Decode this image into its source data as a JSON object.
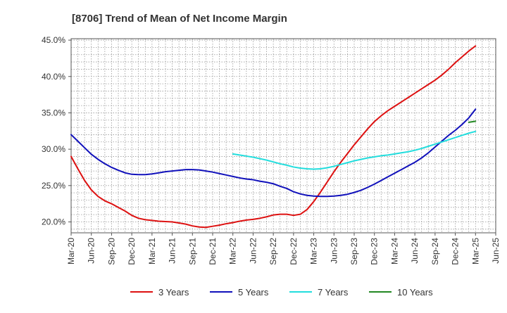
{
  "chart_data": {
    "type": "line",
    "title": "[8706]  Trend of Mean of Net Income Margin",
    "xlabel": "",
    "ylabel": "",
    "ylim": [
      18.5,
      45.2
    ],
    "y_ticks": [
      {
        "value": 20,
        "label": "20.0%"
      },
      {
        "value": 25,
        "label": "25.0%"
      },
      {
        "value": 30,
        "label": "30.0%"
      },
      {
        "value": 35,
        "label": "35.0%"
      },
      {
        "value": 40,
        "label": "40.0%"
      },
      {
        "value": 45,
        "label": "45.0%"
      }
    ],
    "x_ticks": [
      "Mar-20",
      "Jun-20",
      "Sep-20",
      "Dec-20",
      "Mar-21",
      "Jun-21",
      "Sep-21",
      "Dec-21",
      "Mar-22",
      "Jun-22",
      "Sep-22",
      "Dec-22",
      "Mar-23",
      "Jun-23",
      "Sep-23",
      "Dec-23",
      "Mar-24",
      "Jun-24",
      "Sep-24",
      "Dec-24",
      "Mar-25",
      "Jun-25"
    ],
    "grid": true,
    "legend_position": "bottom",
    "series": [
      {
        "name": "3 Years",
        "color": "#dd1111",
        "points": [
          [
            "Mar-20",
            29.0
          ],
          [
            "Apr-20",
            27.3
          ],
          [
            "May-20",
            25.7
          ],
          [
            "Jun-20",
            24.4
          ],
          [
            "Jul-20",
            23.5
          ],
          [
            "Aug-20",
            22.9
          ],
          [
            "Sep-20",
            22.5
          ],
          [
            "Oct-20",
            22.0
          ],
          [
            "Nov-20",
            21.5
          ],
          [
            "Dec-20",
            20.9
          ],
          [
            "Jan-21",
            20.5
          ],
          [
            "Feb-21",
            20.3
          ],
          [
            "Mar-21",
            20.2
          ],
          [
            "Apr-21",
            20.1
          ],
          [
            "May-21",
            20.05
          ],
          [
            "Jun-21",
            20.0
          ],
          [
            "Jul-21",
            19.85
          ],
          [
            "Aug-21",
            19.7
          ],
          [
            "Sep-21",
            19.45
          ],
          [
            "Oct-21",
            19.3
          ],
          [
            "Nov-21",
            19.25
          ],
          [
            "Dec-21",
            19.4
          ],
          [
            "Jan-22",
            19.55
          ],
          [
            "Feb-22",
            19.75
          ],
          [
            "Mar-22",
            19.9
          ],
          [
            "Apr-22",
            20.1
          ],
          [
            "May-22",
            20.25
          ],
          [
            "Jun-22",
            20.35
          ],
          [
            "Jul-22",
            20.5
          ],
          [
            "Aug-22",
            20.7
          ],
          [
            "Sep-22",
            20.95
          ],
          [
            "Oct-22",
            21.05
          ],
          [
            "Nov-22",
            21.05
          ],
          [
            "Dec-22",
            20.9
          ],
          [
            "Jan-23",
            21.05
          ],
          [
            "Feb-23",
            21.7
          ],
          [
            "Mar-23",
            22.8
          ],
          [
            "Apr-23",
            24.1
          ],
          [
            "May-23",
            25.5
          ],
          [
            "Jun-23",
            26.9
          ],
          [
            "Jul-23",
            28.2
          ],
          [
            "Aug-23",
            29.4
          ],
          [
            "Sep-23",
            30.6
          ],
          [
            "Oct-23",
            31.7
          ],
          [
            "Nov-23",
            32.8
          ],
          [
            "Dec-23",
            33.8
          ],
          [
            "Jan-24",
            34.6
          ],
          [
            "Feb-24",
            35.3
          ],
          [
            "Mar-24",
            35.9
          ],
          [
            "Apr-24",
            36.5
          ],
          [
            "May-24",
            37.1
          ],
          [
            "Jun-24",
            37.7
          ],
          [
            "Jul-24",
            38.3
          ],
          [
            "Aug-24",
            38.9
          ],
          [
            "Sep-24",
            39.5
          ],
          [
            "Oct-24",
            40.2
          ],
          [
            "Nov-24",
            41.0
          ],
          [
            "Dec-24",
            41.9
          ],
          [
            "Jan-25",
            42.7
          ],
          [
            "Feb-25",
            43.5
          ],
          [
            "Mar-25",
            44.2
          ]
        ]
      },
      {
        "name": "5 Years",
        "color": "#1111bb",
        "points": [
          [
            "Mar-20",
            32.0
          ],
          [
            "Apr-20",
            31.1
          ],
          [
            "May-20",
            30.2
          ],
          [
            "Jun-20",
            29.3
          ],
          [
            "Jul-20",
            28.6
          ],
          [
            "Aug-20",
            28.0
          ],
          [
            "Sep-20",
            27.5
          ],
          [
            "Oct-20",
            27.1
          ],
          [
            "Nov-20",
            26.75
          ],
          [
            "Dec-20",
            26.55
          ],
          [
            "Jan-21",
            26.5
          ],
          [
            "Feb-21",
            26.5
          ],
          [
            "Mar-21",
            26.6
          ],
          [
            "Apr-21",
            26.75
          ],
          [
            "May-21",
            26.9
          ],
          [
            "Jun-21",
            27.0
          ],
          [
            "Jul-21",
            27.1
          ],
          [
            "Aug-21",
            27.2
          ],
          [
            "Sep-21",
            27.2
          ],
          [
            "Oct-21",
            27.15
          ],
          [
            "Nov-21",
            27.0
          ],
          [
            "Dec-21",
            26.85
          ],
          [
            "Jan-22",
            26.65
          ],
          [
            "Feb-22",
            26.45
          ],
          [
            "Mar-22",
            26.25
          ],
          [
            "Apr-22",
            26.05
          ],
          [
            "May-22",
            25.9
          ],
          [
            "Jun-22",
            25.8
          ],
          [
            "Jul-22",
            25.6
          ],
          [
            "Aug-22",
            25.45
          ],
          [
            "Sep-22",
            25.25
          ],
          [
            "Oct-22",
            24.9
          ],
          [
            "Nov-22",
            24.6
          ],
          [
            "Dec-22",
            24.15
          ],
          [
            "Jan-23",
            23.85
          ],
          [
            "Feb-23",
            23.65
          ],
          [
            "Mar-23",
            23.55
          ],
          [
            "Apr-23",
            23.5
          ],
          [
            "May-23",
            23.5
          ],
          [
            "Jun-23",
            23.55
          ],
          [
            "Jul-23",
            23.65
          ],
          [
            "Aug-23",
            23.8
          ],
          [
            "Sep-23",
            24.05
          ],
          [
            "Oct-23",
            24.35
          ],
          [
            "Nov-23",
            24.75
          ],
          [
            "Dec-23",
            25.2
          ],
          [
            "Jan-24",
            25.7
          ],
          [
            "Feb-24",
            26.2
          ],
          [
            "Mar-24",
            26.7
          ],
          [
            "Apr-24",
            27.2
          ],
          [
            "May-24",
            27.7
          ],
          [
            "Jun-24",
            28.2
          ],
          [
            "Jul-24",
            28.8
          ],
          [
            "Aug-24",
            29.5
          ],
          [
            "Sep-24",
            30.3
          ],
          [
            "Oct-24",
            31.1
          ],
          [
            "Nov-24",
            31.9
          ],
          [
            "Dec-24",
            32.6
          ],
          [
            "Jan-25",
            33.4
          ],
          [
            "Feb-25",
            34.3
          ],
          [
            "Mar-25",
            35.5
          ]
        ]
      },
      {
        "name": "7 Years",
        "color": "#22dddd",
        "points": [
          [
            "Mar-22",
            29.35
          ],
          [
            "Apr-22",
            29.2
          ],
          [
            "May-22",
            29.05
          ],
          [
            "Jun-22",
            28.9
          ],
          [
            "Jul-22",
            28.7
          ],
          [
            "Aug-22",
            28.5
          ],
          [
            "Sep-22",
            28.25
          ],
          [
            "Oct-22",
            28.0
          ],
          [
            "Nov-22",
            27.8
          ],
          [
            "Dec-22",
            27.55
          ],
          [
            "Jan-23",
            27.4
          ],
          [
            "Feb-23",
            27.3
          ],
          [
            "Mar-23",
            27.25
          ],
          [
            "Apr-23",
            27.3
          ],
          [
            "May-23",
            27.45
          ],
          [
            "Jun-23",
            27.65
          ],
          [
            "Jul-23",
            27.9
          ],
          [
            "Aug-23",
            28.15
          ],
          [
            "Sep-23",
            28.4
          ],
          [
            "Oct-23",
            28.6
          ],
          [
            "Nov-23",
            28.8
          ],
          [
            "Dec-23",
            28.95
          ],
          [
            "Jan-24",
            29.1
          ],
          [
            "Feb-24",
            29.2
          ],
          [
            "Mar-24",
            29.35
          ],
          [
            "Apr-24",
            29.5
          ],
          [
            "May-24",
            29.65
          ],
          [
            "Jun-24",
            29.85
          ],
          [
            "Jul-24",
            30.1
          ],
          [
            "Aug-24",
            30.4
          ],
          [
            "Sep-24",
            30.7
          ],
          [
            "Oct-24",
            31.0
          ],
          [
            "Nov-24",
            31.3
          ],
          [
            "Dec-24",
            31.6
          ],
          [
            "Jan-25",
            31.9
          ],
          [
            "Feb-25",
            32.2
          ],
          [
            "Mar-25",
            32.45
          ]
        ]
      },
      {
        "name": "10 Years",
        "color": "#228822",
        "points": [
          [
            "Feb-25",
            33.7
          ],
          [
            "Mar-25",
            33.85
          ]
        ]
      }
    ]
  }
}
